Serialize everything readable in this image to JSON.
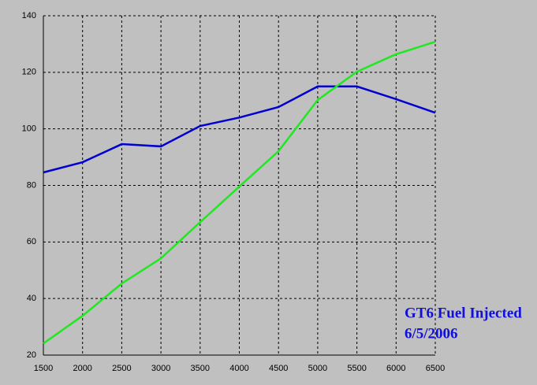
{
  "chart_data": {
    "type": "line",
    "x": [
      1500,
      2000,
      2500,
      3000,
      3500,
      4000,
      4500,
      5000,
      5500,
      6000,
      6500
    ],
    "series": [
      {
        "color": "#0000d0",
        "values": [
          84.6,
          88.2,
          94.6,
          93.8,
          101,
          104,
          107.7,
          115,
          115,
          110.5,
          105.7
        ]
      },
      {
        "color": "#20e820",
        "values": [
          24.1,
          33.9,
          45.3,
          54.2,
          67,
          79.6,
          92.1,
          110.2,
          120.2,
          126.4,
          130.8
        ]
      }
    ],
    "xlim": [
      1500,
      6500
    ],
    "xticks": [
      1500,
      2000,
      2500,
      3000,
      3500,
      4000,
      4500,
      5000,
      5500,
      6000,
      6500
    ],
    "ylim": [
      20,
      140
    ],
    "yticks": [
      20,
      40,
      60,
      80,
      100,
      120,
      140
    ],
    "grid": true,
    "annotations": [
      "GT6 Fuel Injected",
      "6/5/2006"
    ]
  }
}
